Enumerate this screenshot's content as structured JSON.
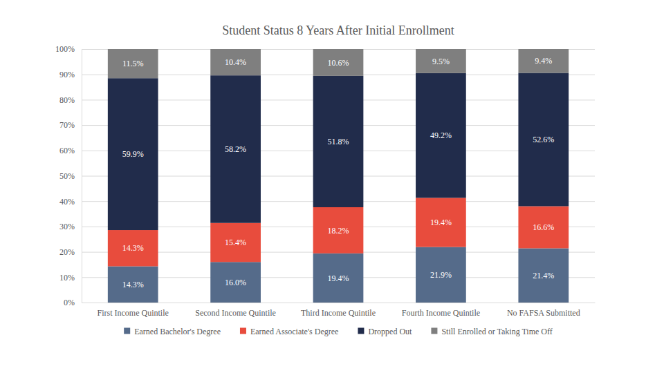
{
  "chart_data": {
    "type": "bar",
    "title": "Student Status 8 Years After Initial Enrollment",
    "categories": [
      "First Income Quintile",
      "Second Income Quintile",
      "Third Income Quintile",
      "Fourth Income Quintile",
      "No FAFSA Submitted"
    ],
    "series": [
      {
        "name": "Earned Bachelor's Degree",
        "color": "#556b8a",
        "values": [
          14.3,
          16.0,
          19.4,
          21.9,
          21.4
        ],
        "value_labels": [
          "14.3%",
          "16.0%",
          "19.4%",
          "21.9%",
          "21.4%"
        ]
      },
      {
        "name": "Earned Associate's Degree",
        "color": "#e84c3d",
        "values": [
          14.3,
          15.4,
          18.2,
          19.4,
          16.6
        ],
        "value_labels": [
          "14.3%",
          "15.4%",
          "18.2%",
          "19.4%",
          "16.6%"
        ]
      },
      {
        "name": "Dropped Out",
        "color": "#212c4b",
        "values": [
          59.9,
          58.2,
          51.8,
          49.2,
          52.6
        ],
        "value_labels": [
          "59.9%",
          "58.2%",
          "51.8%",
          "49.2%",
          "52.6%"
        ]
      },
      {
        "name": "Still Enrolled or Taking Time Off",
        "color": "#7f7f7f",
        "values": [
          11.5,
          10.4,
          10.6,
          9.5,
          9.4
        ],
        "value_labels": [
          "11.5%",
          "10.4%",
          "10.6%",
          "9.5%",
          "9.4%"
        ]
      }
    ],
    "ylim": [
      0,
      100
    ],
    "yticks": [
      {
        "value": 0,
        "label": "0%"
      },
      {
        "value": 10,
        "label": "10%"
      },
      {
        "value": 20,
        "label": "20%"
      },
      {
        "value": 30,
        "label": "30%"
      },
      {
        "value": 40,
        "label": "40%"
      },
      {
        "value": 50,
        "label": "50%"
      },
      {
        "value": 60,
        "label": "60%"
      },
      {
        "value": 70,
        "label": "70%"
      },
      {
        "value": 80,
        "label": "80%"
      },
      {
        "value": 90,
        "label": "90%"
      },
      {
        "value": 100,
        "label": "100%"
      }
    ],
    "stacked": true,
    "data_labels": true,
    "grid": true,
    "legend": "bottom"
  }
}
